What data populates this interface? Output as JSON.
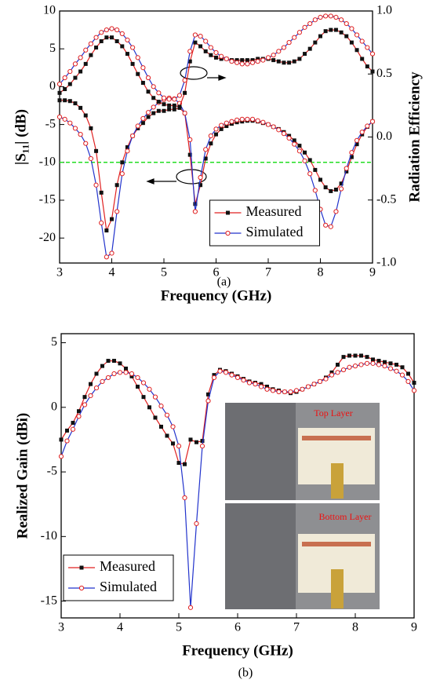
{
  "chart_data": [
    {
      "type": "line",
      "x_label": "Frequency (GHz)",
      "y_label": "|S₁₁| (dB)",
      "y2_label": "Radiation Efficiency",
      "caption": "(a)",
      "xlim": [
        3,
        9
      ],
      "xticks": [
        3,
        4,
        5,
        6,
        7,
        8,
        9
      ],
      "ylim": [
        -23.3,
        10
      ],
      "yticks": [
        -20,
        -15,
        -10,
        -5,
        0,
        5,
        10
      ],
      "y2lim": [
        -1,
        1
      ],
      "y2ticks": [
        {
          "value": -1,
          "label": "-1.0"
        },
        -0.5,
        {
          "value": 0,
          "label": "0.0"
        },
        0.5,
        {
          "value": 1,
          "label": "1.0"
        }
      ],
      "hline": {
        "value": -10,
        "color": "#22dd22"
      },
      "legend": "lower right",
      "x": [
        3.0,
        3.1,
        3.2,
        3.3,
        3.4,
        3.5,
        3.6,
        3.7,
        3.8,
        3.9,
        4.0,
        4.1,
        4.2,
        4.3,
        4.4,
        4.5,
        4.6,
        4.7,
        4.8,
        4.9,
        5.0,
        5.1,
        5.2,
        5.3,
        5.4,
        5.5,
        5.6,
        5.7,
        5.8,
        5.9,
        6.0,
        6.1,
        6.2,
        6.3,
        6.4,
        6.5,
        6.6,
        6.7,
        6.8,
        6.9,
        7.0,
        7.1,
        7.2,
        7.3,
        7.4,
        7.5,
        7.6,
        7.7,
        7.8,
        7.9,
        8.0,
        8.1,
        8.2,
        8.3,
        8.4,
        8.5,
        8.6,
        8.7,
        8.8,
        8.9,
        9.0
      ],
      "series": [
        {
          "name": "Measured",
          "color": "#e02020",
          "marker": "square",
          "marker_color": "#111111",
          "values": [
            -1.8,
            -1.8,
            -1.9,
            -2.2,
            -2.8,
            -3.8,
            -5.5,
            -8.5,
            -14,
            -19,
            -17.5,
            -13,
            -10,
            -8,
            -6.5,
            -5.5,
            -4.8,
            -4,
            -3.5,
            -3.2,
            -3.2,
            -3,
            -3,
            -2.8,
            -3.5,
            -9,
            -15.5,
            -13,
            -9.5,
            -7.5,
            -6.3,
            -5.6,
            -5.2,
            -4.9,
            -4.7,
            -4.6,
            -4.5,
            -4.5,
            -4.6,
            -4.8,
            -5,
            -5.3,
            -5.6,
            -6,
            -6.5,
            -7.1,
            -7.8,
            -8.7,
            -9.7,
            -11,
            -12.3,
            -13.3,
            -13.8,
            -13.6,
            -12.8,
            -11.2,
            -9.3,
            -7.6,
            -6.3,
            -5.3,
            -4.6
          ]
        },
        {
          "name": "Simulated",
          "color": "#2233cc",
          "marker": "circle",
          "marker_color": "#e02020",
          "values": [
            -4,
            -4.3,
            -4.8,
            -5.5,
            -6.3,
            -7.5,
            -9.5,
            -13,
            -18,
            -22.5,
            -22,
            -16.5,
            -11.5,
            -8.5,
            -6.5,
            -5.2,
            -4.2,
            -3.4,
            -2.7,
            -2.1,
            -1.7,
            -1.5,
            -1.6,
            -2.2,
            -3.5,
            -7,
            -16.5,
            -12,
            -8.3,
            -6.5,
            -5.6,
            -5.1,
            -4.8,
            -4.6,
            -4.4,
            -4.3,
            -4.3,
            -4.3,
            -4.5,
            -4.7,
            -5,
            -5.3,
            -5.7,
            -6.2,
            -6.8,
            -7.6,
            -8.5,
            -9.8,
            -11.5,
            -13.7,
            -16.2,
            -18.3,
            -18.5,
            -16.5,
            -13.5,
            -10.8,
            -8.7,
            -7.1,
            -6,
            -5.2,
            -4.6
          ]
        },
        {
          "name": "Measured",
          "axis": "y2",
          "color": "#e02020",
          "marker": "square",
          "marker_color": "#111111",
          "values": [
            0.35,
            0.38,
            0.42,
            0.47,
            0.52,
            0.58,
            0.65,
            0.71,
            0.76,
            0.79,
            0.79,
            0.76,
            0.72,
            0.66,
            0.58,
            0.5,
            0.43,
            0.36,
            0.31,
            0.28,
            0.26,
            0.25,
            0.25,
            0.24,
            0.35,
            0.6,
            0.75,
            0.72,
            0.68,
            0.65,
            0.63,
            0.62,
            0.62,
            0.61,
            0.61,
            0.61,
            0.61,
            0.61,
            0.62,
            0.62,
            0.62,
            0.61,
            0.6,
            0.59,
            0.59,
            0.6,
            0.62,
            0.66,
            0.7,
            0.75,
            0.8,
            0.84,
            0.85,
            0.85,
            0.83,
            0.8,
            0.75,
            0.69,
            0.62,
            0.56,
            0.52
          ]
        },
        {
          "name": "Simulated",
          "axis": "y2",
          "color": "#2233cc",
          "marker": "circle",
          "marker_color": "#e02020",
          "values": [
            0.42,
            0.47,
            0.52,
            0.58,
            0.63,
            0.69,
            0.74,
            0.79,
            0.83,
            0.85,
            0.86,
            0.85,
            0.82,
            0.77,
            0.71,
            0.63,
            0.55,
            0.47,
            0.4,
            0.35,
            0.31,
            0.3,
            0.3,
            0.33,
            0.45,
            0.68,
            0.81,
            0.8,
            0.76,
            0.71,
            0.67,
            0.64,
            0.62,
            0.6,
            0.59,
            0.58,
            0.58,
            0.59,
            0.6,
            0.61,
            0.63,
            0.65,
            0.68,
            0.71,
            0.75,
            0.79,
            0.83,
            0.87,
            0.9,
            0.93,
            0.95,
            0.96,
            0.96,
            0.95,
            0.93,
            0.9,
            0.86,
            0.81,
            0.76,
            0.71,
            0.66
          ]
        }
      ]
    },
    {
      "type": "line",
      "x_label": "Frequency (GHz)",
      "y_label": "Realized Gain (dBi)",
      "caption": "(b)",
      "xlim": [
        3,
        9
      ],
      "xticks": [
        3,
        4,
        5,
        6,
        7,
        8,
        9
      ],
      "ylim": [
        -16.3,
        5.7
      ],
      "yticks": [
        -15,
        -10,
        -5,
        0,
        5
      ],
      "legend": "lower left",
      "annotations": [
        "Top Layer",
        "Bottom Layer"
      ],
      "x": [
        3.0,
        3.1,
        3.2,
        3.3,
        3.4,
        3.5,
        3.6,
        3.7,
        3.8,
        3.9,
        4.0,
        4.1,
        4.2,
        4.3,
        4.4,
        4.5,
        4.6,
        4.7,
        4.8,
        4.9,
        5.0,
        5.1,
        5.2,
        5.3,
        5.4,
        5.5,
        5.6,
        5.7,
        5.8,
        5.9,
        6.0,
        6.1,
        6.2,
        6.3,
        6.4,
        6.5,
        6.6,
        6.7,
        6.8,
        6.9,
        7.0,
        7.1,
        7.2,
        7.3,
        7.4,
        7.5,
        7.6,
        7.7,
        7.8,
        7.9,
        8.0,
        8.1,
        8.2,
        8.3,
        8.4,
        8.5,
        8.6,
        8.7,
        8.8,
        8.9,
        9.0
      ],
      "series": [
        {
          "name": "Measured",
          "color": "#e02020",
          "marker": "square",
          "marker_color": "#111111",
          "values": [
            -2.5,
            -1.8,
            -1.2,
            -0.3,
            0.8,
            1.8,
            2.6,
            3.2,
            3.6,
            3.6,
            3.4,
            3.0,
            2.4,
            1.6,
            0.8,
            0.0,
            -0.8,
            -1.5,
            -2.2,
            -2.8,
            -4.3,
            -4.4,
            -2.5,
            -2.7,
            -2.6,
            1.0,
            2.5,
            2.9,
            2.8,
            2.6,
            2.4,
            2.2,
            2.0,
            1.9,
            1.8,
            1.6,
            1.4,
            1.3,
            1.2,
            1.1,
            1.2,
            1.4,
            1.6,
            1.8,
            2.0,
            2.3,
            2.7,
            3.3,
            3.9,
            4.0,
            4.0,
            4.0,
            3.9,
            3.7,
            3.6,
            3.5,
            3.4,
            3.3,
            3.1,
            2.6,
            1.9
          ]
        },
        {
          "name": "Simulated",
          "color": "#2233cc",
          "marker": "circle",
          "marker_color": "#e02020",
          "values": [
            -3.8,
            -2.6,
            -1.7,
            -0.7,
            0.2,
            0.9,
            1.5,
            2.0,
            2.3,
            2.6,
            2.7,
            2.7,
            2.6,
            2.3,
            1.9,
            1.4,
            0.8,
            0.1,
            -0.6,
            -1.5,
            -3.0,
            -7.0,
            -15.5,
            -9.0,
            -3.0,
            0.5,
            2.3,
            2.8,
            2.7,
            2.5,
            2.3,
            2.1,
            1.9,
            1.8,
            1.6,
            1.4,
            1.3,
            1.2,
            1.2,
            1.2,
            1.3,
            1.4,
            1.6,
            1.8,
            2.0,
            2.2,
            2.5,
            2.7,
            2.9,
            3.1,
            3.2,
            3.3,
            3.4,
            3.4,
            3.3,
            3.2,
            3.0,
            2.8,
            2.5,
            2.0,
            1.3
          ]
        }
      ]
    }
  ]
}
